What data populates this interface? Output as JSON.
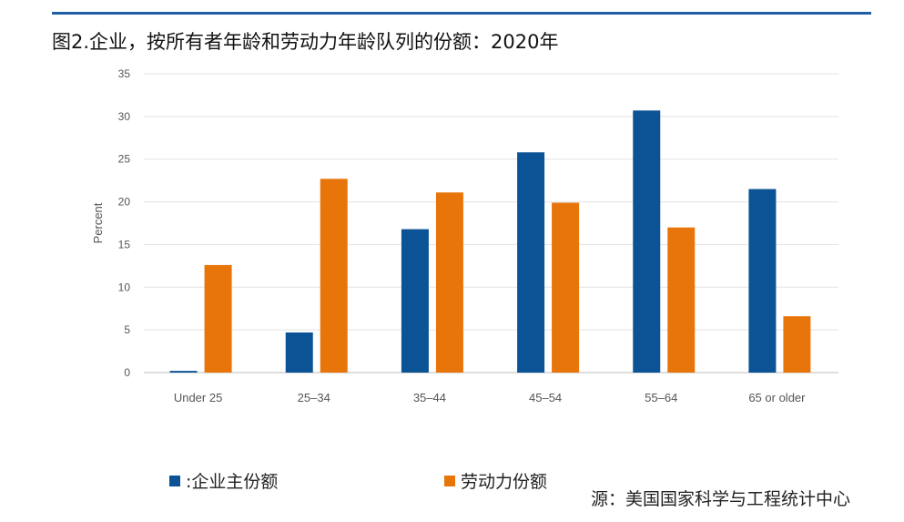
{
  "title": "图2.企业，按所有者年龄和劳动力年龄队列的份额：2020年",
  "source": "源：美国国家科学与工程统计中心",
  "colors": {
    "accent_rule": "#1f5fa6",
    "series_business": "#0b5394",
    "series_labor": "#e8750a",
    "grid": "#e3e3e3"
  },
  "chart_data": {
    "type": "bar",
    "categories": [
      "Under 25",
      "25–34",
      "35–44",
      "45–54",
      "55–64",
      "65 or older"
    ],
    "series": [
      {
        "name": ":企业主份额",
        "color": "#0b5394",
        "values": [
          0.2,
          4.7,
          16.8,
          25.8,
          30.7,
          21.5
        ]
      },
      {
        "name": "劳动力份额",
        "color": "#e8750a",
        "values": [
          12.6,
          22.7,
          21.1,
          19.9,
          17.0,
          6.6
        ]
      }
    ],
    "ylabel": "Percent",
    "ylim": [
      0,
      35
    ],
    "yticks": [
      0,
      5,
      10,
      15,
      20,
      25,
      30,
      35
    ],
    "grid": true,
    "legend_position": "bottom"
  }
}
